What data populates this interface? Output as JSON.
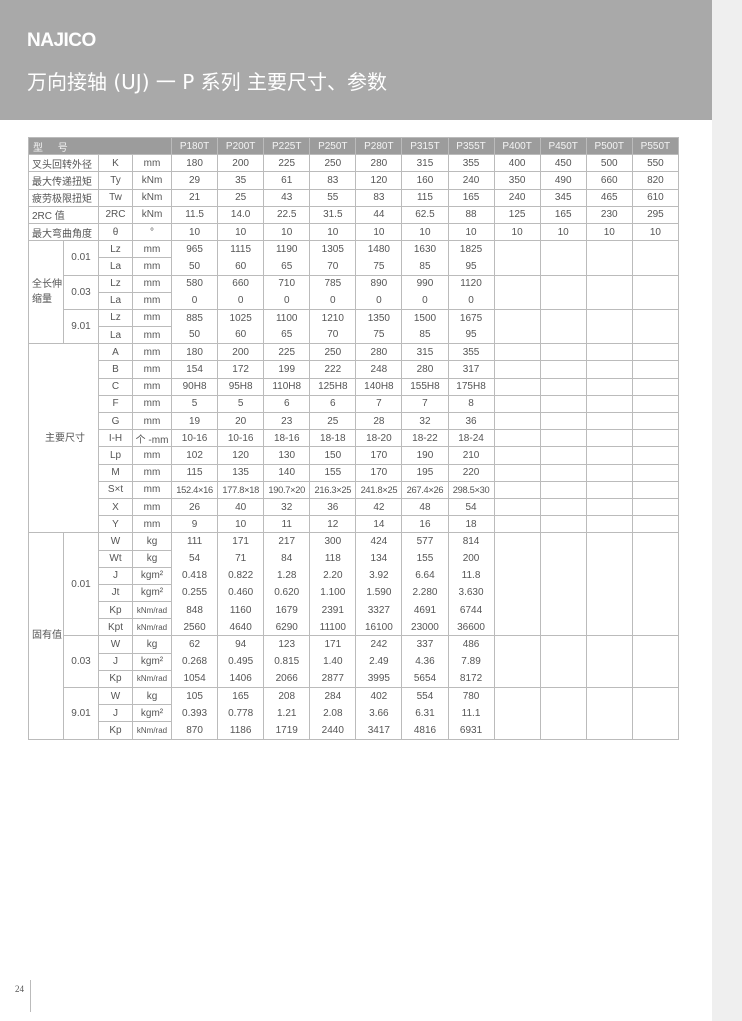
{
  "header": {
    "logo": "NAJICO",
    "title": "万向接轴 (UJ) 一 P 系列   主要尺寸、参数"
  },
  "colors": {
    "banner": "#a9a9a9",
    "table_header": "#9c9c9c"
  },
  "table": {
    "header_label": "型 号",
    "models": [
      "P180T",
      "P200T",
      "P225T",
      "P250T",
      "P280T",
      "P315T",
      "P355T",
      "P400T",
      "P450T",
      "P500T",
      "P550T"
    ],
    "rows": [
      {
        "label": "叉头回转外径",
        "symbol": "K",
        "unit": "mm",
        "values": [
          "180",
          "200",
          "225",
          "250",
          "280",
          "315",
          "355",
          "400",
          "450",
          "500",
          "550"
        ]
      },
      {
        "label": "最大传递扭矩",
        "symbol": "Ty",
        "unit": "kNm",
        "values": [
          "29",
          "35",
          "61",
          "83",
          "120",
          "160",
          "240",
          "350",
          "490",
          "660",
          "820"
        ]
      },
      {
        "label": "疲劳极限扭矩",
        "symbol": "Tw",
        "unit": "kNm",
        "values": [
          "21",
          "25",
          "43",
          "55",
          "83",
          "115",
          "165",
          "240",
          "345",
          "465",
          "610"
        ]
      },
      {
        "label": "2RC 值",
        "symbol": "2RC",
        "unit": "kNm",
        "values": [
          "11.5",
          "14.0",
          "22.5",
          "31.5",
          "44",
          "62.5",
          "88",
          "125",
          "165",
          "230",
          "295"
        ]
      },
      {
        "label": "最大弯曲角度",
        "symbol": "θ",
        "unit": "°",
        "values": [
          "10",
          "10",
          "10",
          "10",
          "10",
          "10",
          "10",
          "10",
          "10",
          "10",
          "10"
        ]
      },
      {
        "group": "全长伸缩量",
        "sub": "0.01",
        "symbol": "Lz",
        "unit": "mm",
        "values": [
          "965",
          "1115",
          "1190",
          "1305",
          "1480",
          "1630",
          "1825",
          "",
          "",
          "",
          ""
        ]
      },
      {
        "group": "全长伸缩量",
        "sub": "0.01",
        "symbol": "La",
        "unit": "mm",
        "values": [
          "50",
          "60",
          "65",
          "70",
          "75",
          "85",
          "95",
          "",
          "",
          "",
          ""
        ]
      },
      {
        "group": "全长伸缩量",
        "sub": "0.03",
        "symbol": "Lz",
        "unit": "mm",
        "values": [
          "580",
          "660",
          "710",
          "785",
          "890",
          "990",
          "1120",
          "",
          "",
          "",
          ""
        ]
      },
      {
        "group": "全长伸缩量",
        "sub": "0.03",
        "symbol": "La",
        "unit": "mm",
        "values": [
          "0",
          "0",
          "0",
          "0",
          "0",
          "0",
          "0",
          "",
          "",
          "",
          ""
        ]
      },
      {
        "group": "全长伸缩量",
        "sub": "9.01",
        "symbol": "Lz",
        "unit": "mm",
        "values": [
          "885",
          "1025",
          "1100",
          "1210",
          "1350",
          "1500",
          "1675",
          "",
          "",
          "",
          ""
        ]
      },
      {
        "group": "全长伸缩量",
        "sub": "9.01",
        "symbol": "La",
        "unit": "mm",
        "values": [
          "50",
          "60",
          "65",
          "70",
          "75",
          "85",
          "95",
          "",
          "",
          "",
          ""
        ]
      },
      {
        "group": "主要尺寸",
        "symbol": "A",
        "unit": "mm",
        "values": [
          "180",
          "200",
          "225",
          "250",
          "280",
          "315",
          "355",
          "",
          "",
          "",
          ""
        ]
      },
      {
        "group": "主要尺寸",
        "symbol": "B",
        "unit": "mm",
        "values": [
          "154",
          "172",
          "199",
          "222",
          "248",
          "280",
          "317",
          "",
          "",
          "",
          ""
        ]
      },
      {
        "group": "主要尺寸",
        "symbol": "C",
        "unit": "mm",
        "values": [
          "90H8",
          "95H8",
          "110H8",
          "125H8",
          "140H8",
          "155H8",
          "175H8",
          "",
          "",
          "",
          ""
        ]
      },
      {
        "group": "主要尺寸",
        "symbol": "F",
        "unit": "mm",
        "values": [
          "5",
          "5",
          "6",
          "6",
          "7",
          "7",
          "8",
          "",
          "",
          "",
          ""
        ]
      },
      {
        "group": "主要尺寸",
        "symbol": "G",
        "unit": "mm",
        "values": [
          "19",
          "20",
          "23",
          "25",
          "28",
          "32",
          "36",
          "",
          "",
          "",
          ""
        ]
      },
      {
        "group": "主要尺寸",
        "symbol": "I-H",
        "unit": "个 -mm",
        "values": [
          "10-16",
          "10-16",
          "18-16",
          "18-18",
          "18-20",
          "18-22",
          "18-24",
          "",
          "",
          "",
          ""
        ]
      },
      {
        "group": "主要尺寸",
        "symbol": "Lp",
        "unit": "mm",
        "values": [
          "102",
          "120",
          "130",
          "150",
          "170",
          "190",
          "210",
          "",
          "",
          "",
          ""
        ]
      },
      {
        "group": "主要尺寸",
        "symbol": "M",
        "unit": "mm",
        "values": [
          "115",
          "135",
          "140",
          "155",
          "170",
          "195",
          "220",
          "",
          "",
          "",
          ""
        ]
      },
      {
        "group": "主要尺寸",
        "symbol": "S×t",
        "unit": "mm",
        "values": [
          "152.4×16",
          "177.8×18",
          "190.7×20",
          "216.3×25",
          "241.8×25",
          "267.4×26",
          "298.5×30",
          "",
          "",
          "",
          ""
        ]
      },
      {
        "group": "主要尺寸",
        "symbol": "X",
        "unit": "mm",
        "values": [
          "26",
          "40",
          "32",
          "36",
          "42",
          "48",
          "54",
          "",
          "",
          "",
          ""
        ]
      },
      {
        "group": "主要尺寸",
        "symbol": "Y",
        "unit": "mm",
        "values": [
          "9",
          "10",
          "11",
          "12",
          "14",
          "16",
          "18",
          "",
          "",
          "",
          ""
        ]
      },
      {
        "group": "固有值",
        "sub": "0.01",
        "symbol": "W",
        "unit": "kg",
        "values": [
          "111",
          "171",
          "217",
          "300",
          "424",
          "577",
          "814",
          "",
          "",
          "",
          ""
        ]
      },
      {
        "group": "固有值",
        "sub": "0.01",
        "symbol": "Wt",
        "unit": "kg",
        "values": [
          "54",
          "71",
          "84",
          "118",
          "134",
          "155",
          "200",
          "",
          "",
          "",
          ""
        ]
      },
      {
        "group": "固有值",
        "sub": "0.01",
        "symbol": "J",
        "unit": "kgm²",
        "values": [
          "0.418",
          "0.822",
          "1.28",
          "2.20",
          "3.92",
          "6.64",
          "11.8",
          "",
          "",
          "",
          ""
        ]
      },
      {
        "group": "固有值",
        "sub": "0.01",
        "symbol": "Jt",
        "unit": "kgm²",
        "values": [
          "0.255",
          "0.460",
          "0.620",
          "1.100",
          "1.590",
          "2.280",
          "3.630",
          "",
          "",
          "",
          ""
        ]
      },
      {
        "group": "固有值",
        "sub": "0.01",
        "symbol": "Kp",
        "unit": "kNm/rad",
        "values": [
          "848",
          "1160",
          "1679",
          "2391",
          "3327",
          "4691",
          "6744",
          "",
          "",
          "",
          ""
        ]
      },
      {
        "group": "固有值",
        "sub": "0.01",
        "symbol": "Kpt",
        "unit": "kNm/rad",
        "values": [
          "2560",
          "4640",
          "6290",
          "11100",
          "16100",
          "23000",
          "36600",
          "",
          "",
          "",
          ""
        ]
      },
      {
        "group": "固有值",
        "sub": "0.03",
        "symbol": "W",
        "unit": "kg",
        "values": [
          "62",
          "94",
          "123",
          "171",
          "242",
          "337",
          "486",
          "",
          "",
          "",
          ""
        ]
      },
      {
        "group": "固有值",
        "sub": "0.03",
        "symbol": "J",
        "unit": "kgm²",
        "values": [
          "0.268",
          "0.495",
          "0.815",
          "1.40",
          "2.49",
          "4.36",
          "7.89",
          "",
          "",
          "",
          ""
        ]
      },
      {
        "group": "固有值",
        "sub": "0.03",
        "symbol": "Kp",
        "unit": "kNm/rad",
        "values": [
          "1054",
          "1406",
          "2066",
          "2877",
          "3995",
          "5654",
          "8172",
          "",
          "",
          "",
          ""
        ]
      },
      {
        "group": "固有值",
        "sub": "9.01",
        "symbol": "W",
        "unit": "kg",
        "values": [
          "105",
          "165",
          "208",
          "284",
          "402",
          "554",
          "780",
          "",
          "",
          "",
          ""
        ]
      },
      {
        "group": "固有值",
        "sub": "9.01",
        "symbol": "J",
        "unit": "kgm²",
        "values": [
          "0.393",
          "0.778",
          "1.21",
          "2.08",
          "3.66",
          "6.31",
          "11.1",
          "",
          "",
          "",
          ""
        ]
      },
      {
        "group": "固有值",
        "sub": "9.01",
        "symbol": "Kp",
        "unit": "kNm/rad",
        "values": [
          "870",
          "1186",
          "1719",
          "2440",
          "3417",
          "4816",
          "6931",
          "",
          "",
          "",
          ""
        ]
      }
    ]
  },
  "footer": {
    "page_number": "24"
  }
}
